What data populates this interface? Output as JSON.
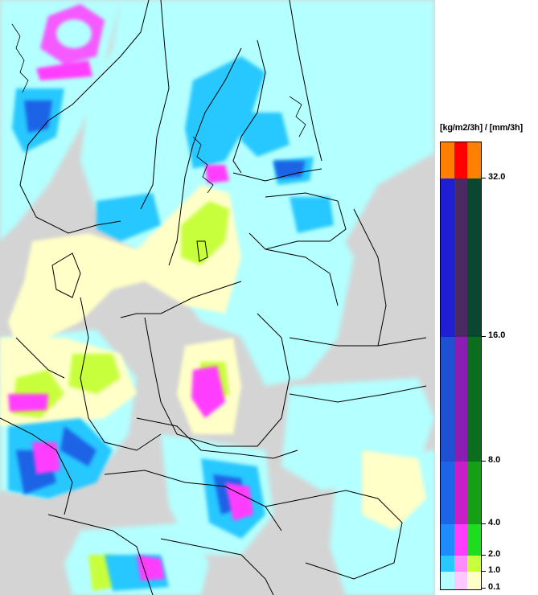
{
  "legend": {
    "title": "[kg/m2/3h] / [mm/3h]",
    "labels": [
      "32.0",
      "16.0",
      "8.0",
      "4.0",
      "2.0",
      "1.0",
      "0.1"
    ],
    "bands": [
      {
        "colors": [
          "#ff8000",
          "#ff0000",
          "#ff8000"
        ]
      },
      {
        "colors": [
          "#1e1ed2",
          "#4b2a63",
          "#0b4630"
        ]
      },
      {
        "colors": [
          "#1e50d2",
          "#8a1eb4",
          "#0a6e1e"
        ]
      },
      {
        "colors": [
          "#1e64e6",
          "#c81ec8",
          "#14a014"
        ]
      },
      {
        "colors": [
          "#1e8cff",
          "#ff3cff",
          "#1edc1e"
        ]
      },
      {
        "colors": [
          "#28c8ff",
          "#ff8cff",
          "#c8ff3c"
        ]
      },
      {
        "colors": [
          "#b4ffff",
          "#ffc8ff",
          "#ffffc8"
        ]
      }
    ]
  },
  "map": {
    "land_color": "#d4d4d4",
    "water_color": "#d4d4d4",
    "border_color": "#000000"
  }
}
